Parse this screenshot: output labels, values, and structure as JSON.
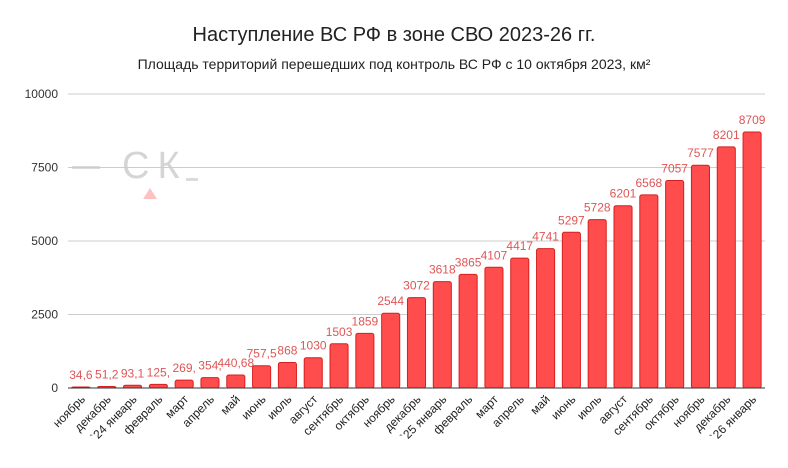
{
  "chart_data": {
    "type": "bar",
    "title": "Наступление ВС РФ в зоне СВО 2023-26 гг.",
    "subtitle": "Площадь территорий перешедших под контроль ВС РФ с 10 октября 2023, км²",
    "categories": [
      "ноябрь",
      "декабрь",
      "`24 январь",
      "февраль",
      "март",
      "апрель",
      "май",
      "июнь",
      "июль",
      "август",
      "сентябрь",
      "октябрь",
      "ноябрь",
      "декабрь",
      "`25 январь",
      "февраль",
      "март",
      "апрель",
      "май",
      "июнь",
      "июль",
      "август",
      "сентябрь",
      "октябрь",
      "ноябрь",
      "декабрь",
      "`26 январь"
    ],
    "values": [
      34.6,
      51.2,
      93.1,
      125,
      269,
      354,
      440.68,
      757.5,
      868,
      1030,
      1503,
      1859,
      2544,
      3072,
      3618,
      3865,
      4107,
      4417,
      4741,
      5297,
      5728,
      6201,
      6568,
      7057,
      7577,
      8201,
      8709
    ],
    "data_labels": [
      "34,6",
      "51,2",
      "93,1",
      "125,",
      "269,",
      "354,",
      "440,68",
      "757,5",
      "868",
      "1030",
      "1503",
      "1859",
      "2544",
      "3072",
      "3618",
      "3865",
      "4107",
      "4417",
      "4741",
      "5297",
      "5728",
      "6201",
      "6568",
      "7057",
      "7577",
      "8201",
      "8709"
    ],
    "yticks": [
      "0",
      "2500",
      "5000",
      "7500",
      "10000"
    ],
    "ylim": [
      0,
      10000
    ],
    "grid": true,
    "bar_color": "#ff4d4d",
    "label_color": "#e05555"
  }
}
